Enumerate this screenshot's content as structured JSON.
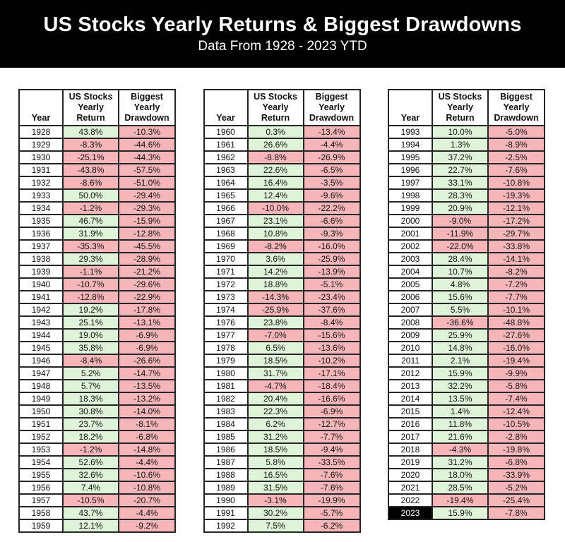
{
  "header": {
    "title": "US Stocks Yearly Returns & Biggest Drawdowns",
    "subtitle": "Data From 1928 - 2023 YTD"
  },
  "colors": {
    "positive_bg": "#dff3d8",
    "negative_bg": "#f6b6b9",
    "highlight_bg": "#000000",
    "highlight_text": "#ffffff",
    "banner_bg": "#000000",
    "banner_text": "#ffffff"
  },
  "chart_data": {
    "type": "table",
    "title": "US Stocks Yearly Returns & Biggest Drawdowns",
    "subtitle": "Data From 1928 - 2023 YTD",
    "columns": [
      "Year",
      "US Stocks Yearly Return",
      "Biggest Yearly Drawdown"
    ],
    "highlighted_year": "2023",
    "tables": [
      {
        "rows": [
          [
            "1928",
            "43.8%",
            "-10.3%"
          ],
          [
            "1929",
            "-8.3%",
            "-44.6%"
          ],
          [
            "1930",
            "-25.1%",
            "-44.3%"
          ],
          [
            "1931",
            "-43.8%",
            "-57.5%"
          ],
          [
            "1932",
            "-8.6%",
            "-51.0%"
          ],
          [
            "1933",
            "50.0%",
            "-29.4%"
          ],
          [
            "1934",
            "-1.2%",
            "-29.3%"
          ],
          [
            "1935",
            "46.7%",
            "-15.9%"
          ],
          [
            "1936",
            "31.9%",
            "-12.8%"
          ],
          [
            "1937",
            "-35.3%",
            "-45.5%"
          ],
          [
            "1938",
            "29.3%",
            "-28.9%"
          ],
          [
            "1939",
            "-1.1%",
            "-21.2%"
          ],
          [
            "1940",
            "-10.7%",
            "-29.6%"
          ],
          [
            "1941",
            "-12.8%",
            "-22.9%"
          ],
          [
            "1942",
            "19.2%",
            "-17.8%"
          ],
          [
            "1943",
            "25.1%",
            "-13.1%"
          ],
          [
            "1944",
            "19.0%",
            "-6.9%"
          ],
          [
            "1945",
            "35.8%",
            "-6.9%"
          ],
          [
            "1946",
            "-8.4%",
            "-26.6%"
          ],
          [
            "1947",
            "5.2%",
            "-14.7%"
          ],
          [
            "1948",
            "5.7%",
            "-13.5%"
          ],
          [
            "1949",
            "18.3%",
            "-13.2%"
          ],
          [
            "1950",
            "30.8%",
            "-14.0%"
          ],
          [
            "1951",
            "23.7%",
            "-8.1%"
          ],
          [
            "1952",
            "18.2%",
            "-6.8%"
          ],
          [
            "1953",
            "-1.2%",
            "-14.8%"
          ],
          [
            "1954",
            "52.6%",
            "-4.4%"
          ],
          [
            "1955",
            "32.6%",
            "-10.6%"
          ],
          [
            "1956",
            "7.4%",
            "-10.8%"
          ],
          [
            "1957",
            "-10.5%",
            "-20.7%"
          ],
          [
            "1958",
            "43.7%",
            "-4.4%"
          ],
          [
            "1959",
            "12.1%",
            "-9.2%"
          ]
        ]
      },
      {
        "rows": [
          [
            "1960",
            "0.3%",
            "-13.4%"
          ],
          [
            "1961",
            "26.6%",
            "-4.4%"
          ],
          [
            "1962",
            "-8.8%",
            "-26.9%"
          ],
          [
            "1963",
            "22.6%",
            "-6.5%"
          ],
          [
            "1964",
            "16.4%",
            "-3.5%"
          ],
          [
            "1965",
            "12.4%",
            "-9.6%"
          ],
          [
            "1966",
            "-10.0%",
            "-22.2%"
          ],
          [
            "1967",
            "23.1%",
            "-6.6%"
          ],
          [
            "1968",
            "10.8%",
            "-9.3%"
          ],
          [
            "1969",
            "-8.2%",
            "-16.0%"
          ],
          [
            "1970",
            "3.6%",
            "-25.9%"
          ],
          [
            "1971",
            "14.2%",
            "-13.9%"
          ],
          [
            "1972",
            "18.8%",
            "-5.1%"
          ],
          [
            "1973",
            "-14.3%",
            "-23.4%"
          ],
          [
            "1974",
            "-25.9%",
            "-37.6%"
          ],
          [
            "1976",
            "23.8%",
            "-8.4%"
          ],
          [
            "1977",
            "-7.0%",
            "-15.6%"
          ],
          [
            "1978",
            "6.5%",
            "-13.6%"
          ],
          [
            "1979",
            "18.5%",
            "-10.2%"
          ],
          [
            "1980",
            "31.7%",
            "-17.1%"
          ],
          [
            "1981",
            "-4.7%",
            "-18.4%"
          ],
          [
            "1982",
            "20.4%",
            "-16.6%"
          ],
          [
            "1983",
            "22.3%",
            "-6.9%"
          ],
          [
            "1984",
            "6.2%",
            "-12.7%"
          ],
          [
            "1985",
            "31.2%",
            "-7.7%"
          ],
          [
            "1986",
            "18.5%",
            "-9.4%"
          ],
          [
            "1987",
            "5.8%",
            "-33.5%"
          ],
          [
            "1988",
            "16.5%",
            "-7.6%"
          ],
          [
            "1989",
            "31.5%",
            "-7.6%"
          ],
          [
            "1990",
            "-3.1%",
            "-19.9%"
          ],
          [
            "1991",
            "30.2%",
            "-5.7%"
          ],
          [
            "1992",
            "7.5%",
            "-6.2%"
          ]
        ]
      },
      {
        "rows": [
          [
            "1993",
            "10.0%",
            "-5.0%"
          ],
          [
            "1994",
            "1.3%",
            "-8.9%"
          ],
          [
            "1995",
            "37.2%",
            "-2.5%"
          ],
          [
            "1996",
            "22.7%",
            "-7.6%"
          ],
          [
            "1997",
            "33.1%",
            "-10.8%"
          ],
          [
            "1998",
            "28.3%",
            "-19.3%"
          ],
          [
            "1999",
            "20.9%",
            "-12.1%"
          ],
          [
            "2000",
            "-9.0%",
            "-17.2%"
          ],
          [
            "2001",
            "-11.9%",
            "-29.7%"
          ],
          [
            "2002",
            "-22.0%",
            "-33.8%"
          ],
          [
            "2003",
            "28.4%",
            "-14.1%"
          ],
          [
            "2004",
            "10.7%",
            "-8.2%"
          ],
          [
            "2005",
            "4.8%",
            "-7.2%"
          ],
          [
            "2006",
            "15.6%",
            "-7.7%"
          ],
          [
            "2007",
            "5.5%",
            "-10.1%"
          ],
          [
            "2008",
            "-36.6%",
            "-48.8%"
          ],
          [
            "2009",
            "25.9%",
            "-27.6%"
          ],
          [
            "2010",
            "14.8%",
            "-16.0%"
          ],
          [
            "2011",
            "2.1%",
            "-19.4%"
          ],
          [
            "2012",
            "15.9%",
            "-9.9%"
          ],
          [
            "2013",
            "32.2%",
            "-5.8%"
          ],
          [
            "2014",
            "13.5%",
            "-7.4%"
          ],
          [
            "2015",
            "1.4%",
            "-12.4%"
          ],
          [
            "2016",
            "11.8%",
            "-10.5%"
          ],
          [
            "2017",
            "21.6%",
            "-2.8%"
          ],
          [
            "2018",
            "-4.3%",
            "-19.8%"
          ],
          [
            "2019",
            "31.2%",
            "-6.8%"
          ],
          [
            "2020",
            "18.0%",
            "-33.9%"
          ],
          [
            "2021",
            "28.5%",
            "-5.2%"
          ],
          [
            "2022",
            "-19.4%",
            "-25.4%"
          ],
          [
            "2023",
            "15.9%",
            "-7.8%"
          ]
        ]
      }
    ]
  }
}
